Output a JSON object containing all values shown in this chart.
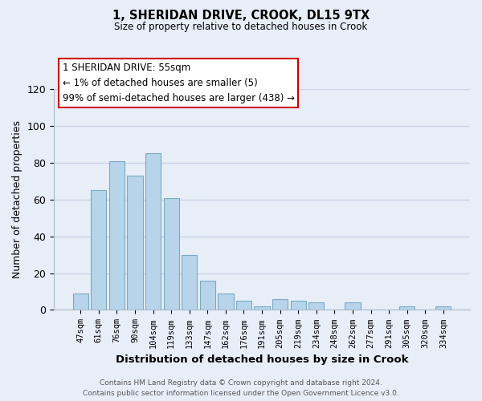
{
  "title": "1, SHERIDAN DRIVE, CROOK, DL15 9TX",
  "subtitle": "Size of property relative to detached houses in Crook",
  "xlabel": "Distribution of detached houses by size in Crook",
  "ylabel": "Number of detached properties",
  "bar_labels": [
    "47sqm",
    "61sqm",
    "76sqm",
    "90sqm",
    "104sqm",
    "119sqm",
    "133sqm",
    "147sqm",
    "162sqm",
    "176sqm",
    "191sqm",
    "205sqm",
    "219sqm",
    "234sqm",
    "248sqm",
    "262sqm",
    "277sqm",
    "291sqm",
    "305sqm",
    "320sqm",
    "334sqm"
  ],
  "bar_values": [
    9,
    65,
    81,
    73,
    85,
    61,
    30,
    16,
    9,
    5,
    2,
    6,
    5,
    4,
    0,
    4,
    0,
    0,
    2,
    0,
    2
  ],
  "bar_color": "#b8d4ea",
  "bar_edge_color": "#7aaabf",
  "ylim": [
    0,
    120
  ],
  "yticks": [
    0,
    20,
    40,
    60,
    80,
    100,
    120
  ],
  "annotation_lines": [
    "1 SHERIDAN DRIVE: 55sqm",
    "← 1% of detached houses are smaller (5)",
    "99% of semi-detached houses are larger (438) →"
  ],
  "annotation_box_color": "#ffffff",
  "annotation_box_edge_color": "#cc0000",
  "footer_line1": "Contains HM Land Registry data © Crown copyright and database right 2024.",
  "footer_line2": "Contains public sector information licensed under the Open Government Licence v3.0.",
  "background_color": "#e8eef8",
  "grid_color": "#c8d4e8"
}
